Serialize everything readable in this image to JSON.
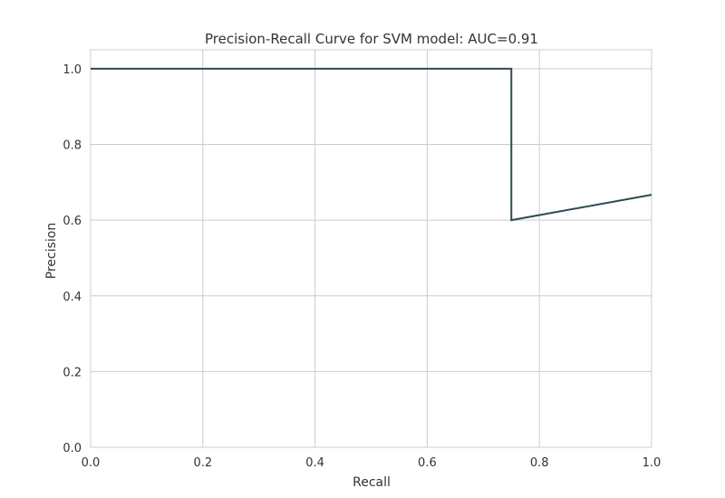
{
  "chart_data": {
    "type": "line",
    "title": "Precision-Recall Curve for SVM model: AUC=0.91",
    "xlabel": "Recall",
    "ylabel": "Precision",
    "xlim": [
      0.0,
      1.0
    ],
    "ylim": [
      0.0,
      1.05
    ],
    "x_ticks": [
      "0.0",
      "0.2",
      "0.4",
      "0.6",
      "0.8",
      "1.0"
    ],
    "y_ticks": [
      "0.0",
      "0.2",
      "0.4",
      "0.6",
      "0.8",
      "1.0"
    ],
    "grid": true,
    "series": [
      {
        "color": "#2f4a52",
        "x": [
          0.0,
          0.75,
          0.75,
          1.0
        ],
        "y": [
          1.0,
          1.0,
          0.6,
          0.667
        ]
      }
    ]
  }
}
